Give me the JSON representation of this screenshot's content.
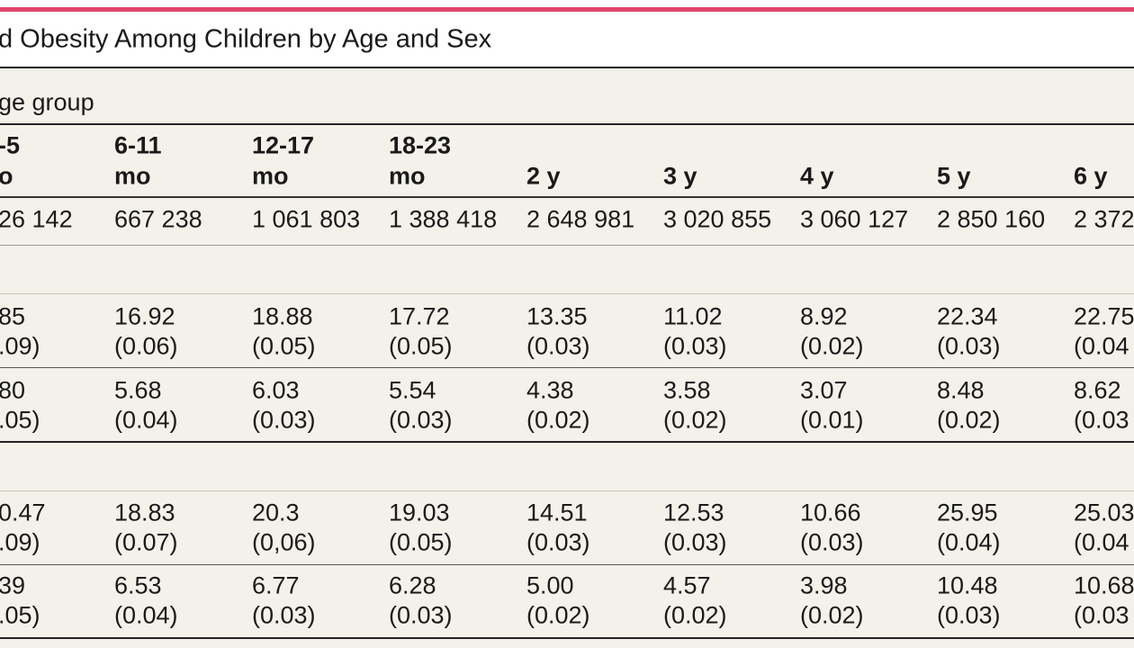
{
  "title": "d Obesity Among Children by Age and Sex",
  "section_label": "ge group",
  "columns": [
    [
      "-5",
      "o"
    ],
    [
      "6-11",
      "mo"
    ],
    [
      "12-17",
      "mo"
    ],
    [
      "18-23",
      "mo"
    ],
    [
      "2 y"
    ],
    [
      "3 y"
    ],
    [
      "4 y"
    ],
    [
      "5 y"
    ],
    [
      "6 y"
    ]
  ],
  "n_row": [
    "26 142",
    "667 238",
    "1 061 803",
    "1 388 418",
    "2 648 981",
    "3 020 855",
    "3 060 127",
    "2 850 160",
    "2 372"
  ],
  "groups": [
    {
      "rows": [
        [
          [
            "85",
            ".09)"
          ],
          [
            "16.92",
            "(0.06)"
          ],
          [
            "18.88",
            "(0.05)"
          ],
          [
            "17.72",
            "(0.05)"
          ],
          [
            "13.35",
            "(0.03)"
          ],
          [
            "11.02",
            "(0.03)"
          ],
          [
            "8.92",
            "(0.02)"
          ],
          [
            "22.34",
            "(0.03)"
          ],
          [
            "22.75",
            "(0.04"
          ]
        ],
        [
          [
            "80",
            ".05)"
          ],
          [
            "5.68",
            "(0.04)"
          ],
          [
            "6.03",
            "(0.03)"
          ],
          [
            "5.54",
            "(0.03)"
          ],
          [
            "4.38",
            "(0.02)"
          ],
          [
            "3.58",
            "(0.02)"
          ],
          [
            "3.07",
            "(0.01)"
          ],
          [
            "8.48",
            "(0.02)"
          ],
          [
            "8.62",
            "(0.03"
          ]
        ]
      ]
    },
    {
      "rows": [
        [
          [
            "0.47",
            ".09)"
          ],
          [
            "18.83",
            "(0.07)"
          ],
          [
            "20.3",
            "(0,06)"
          ],
          [
            "19.03",
            "(0.05)"
          ],
          [
            "14.51",
            "(0.03)"
          ],
          [
            "12.53",
            "(0.03)"
          ],
          [
            "10.66",
            "(0.03)"
          ],
          [
            "25.95",
            "(0.04)"
          ],
          [
            "25.03",
            "(0.04"
          ]
        ],
        [
          [
            "39",
            ".05)"
          ],
          [
            "6.53",
            "(0.04)"
          ],
          [
            "6.77",
            "(0.03)"
          ],
          [
            "6.28",
            "(0.03)"
          ],
          [
            "5.00",
            "(0.02)"
          ],
          [
            "4.57",
            "(0.02)"
          ],
          [
            "3.98",
            "(0.02)"
          ],
          [
            "10.48",
            "(0.03)"
          ],
          [
            "10.68",
            "(0.03"
          ]
        ]
      ]
    }
  ]
}
